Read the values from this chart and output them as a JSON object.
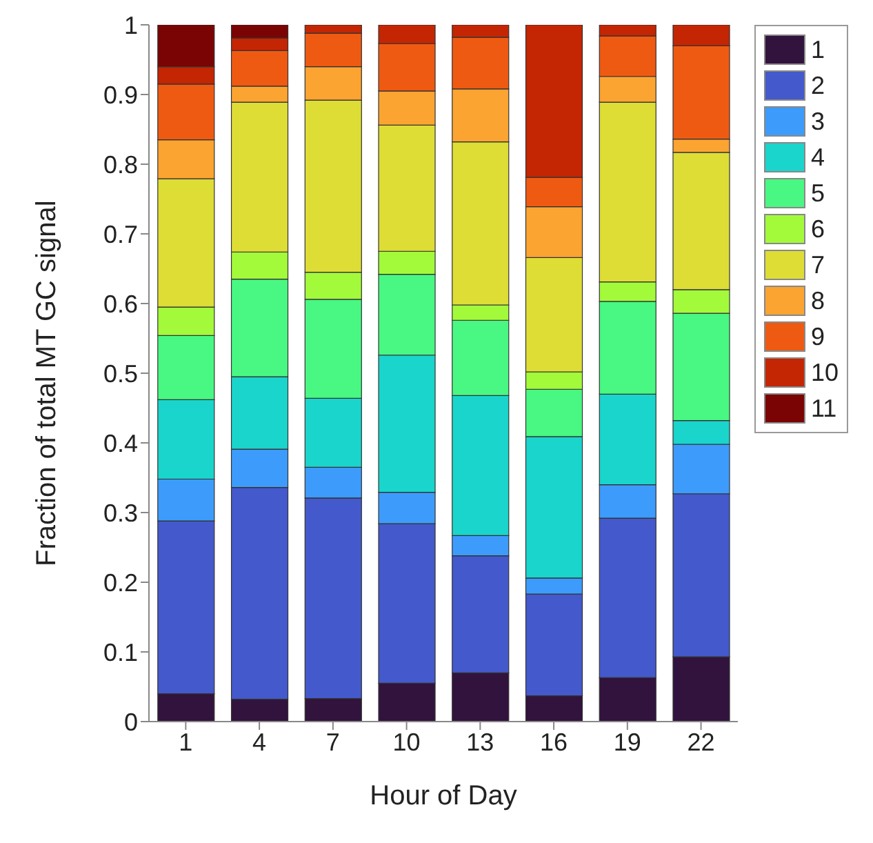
{
  "chart_data": {
    "type": "bar",
    "stacked": true,
    "xlabel": "Hour of Day",
    "ylabel": "Fraction of total MT GC signal",
    "categories": [
      "1",
      "4",
      "7",
      "10",
      "13",
      "16",
      "19",
      "22"
    ],
    "ylim": [
      0,
      1
    ],
    "yticks": [
      0,
      0.1,
      0.2,
      0.3,
      0.4,
      0.5,
      0.6,
      0.7,
      0.8,
      0.9,
      1
    ],
    "legend": "top right",
    "series": [
      {
        "name": "1",
        "color": "#32133d",
        "values": [
          0.04,
          0.032,
          0.033,
          0.055,
          0.07,
          0.037,
          0.063,
          0.093
        ]
      },
      {
        "name": "2",
        "color": "#4459cb",
        "values": [
          0.248,
          0.304,
          0.288,
          0.229,
          0.168,
          0.146,
          0.229,
          0.234
        ]
      },
      {
        "name": "3",
        "color": "#3d9cfb",
        "values": [
          0.06,
          0.055,
          0.044,
          0.045,
          0.029,
          0.023,
          0.048,
          0.071
        ]
      },
      {
        "name": "4",
        "color": "#1ad5cb",
        "values": [
          0.114,
          0.104,
          0.099,
          0.197,
          0.201,
          0.203,
          0.13,
          0.034
        ]
      },
      {
        "name": "5",
        "color": "#48f882",
        "values": [
          0.092,
          0.14,
          0.142,
          0.116,
          0.108,
          0.068,
          0.133,
          0.154
        ]
      },
      {
        "name": "6",
        "color": "#a3fa3a",
        "values": [
          0.041,
          0.039,
          0.039,
          0.033,
          0.022,
          0.025,
          0.028,
          0.034
        ]
      },
      {
        "name": "7",
        "color": "#dedd36",
        "values": [
          0.184,
          0.215,
          0.247,
          0.181,
          0.234,
          0.164,
          0.258,
          0.197
        ]
      },
      {
        "name": "8",
        "color": "#fba431",
        "values": [
          0.056,
          0.023,
          0.048,
          0.049,
          0.076,
          0.073,
          0.037,
          0.019
        ]
      },
      {
        "name": "9",
        "color": "#ef5a12",
        "values": [
          0.08,
          0.051,
          0.048,
          0.068,
          0.074,
          0.042,
          0.058,
          0.134
        ]
      },
      {
        "name": "10",
        "color": "#c42503",
        "values": [
          0.025,
          0.018,
          0.012,
          0.027,
          0.018,
          0.219,
          0.016,
          0.03
        ]
      },
      {
        "name": "11",
        "color": "#7a0403",
        "values": [
          0.06,
          0.019,
          0,
          0,
          0,
          0,
          0,
          0
        ]
      }
    ]
  }
}
